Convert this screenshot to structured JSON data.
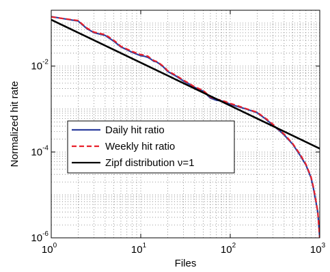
{
  "chart_data": {
    "type": "line",
    "xlabel": "Files",
    "ylabel": "Normalized hit rate",
    "xscale": "log",
    "yscale": "log",
    "xlim": [
      1,
      1000
    ],
    "ylim": [
      1e-06,
      0.2
    ],
    "x_ticks": [
      {
        "base": "10",
        "exp": "0",
        "value": 1
      },
      {
        "base": "10",
        "exp": "1",
        "value": 10
      },
      {
        "base": "10",
        "exp": "2",
        "value": 100
      },
      {
        "base": "10",
        "exp": "3",
        "value": 1000
      }
    ],
    "y_ticks": [
      {
        "base": "10",
        "exp": "-6",
        "value": 1e-06
      },
      {
        "base": "10",
        "exp": "-4",
        "value": 0.0001
      },
      {
        "base": "10",
        "exp": "-2",
        "value": 0.01
      }
    ],
    "grid": true,
    "legend_position": "lower-left",
    "series": [
      {
        "name": "Daily hit ratio",
        "color": "#2c3e9e",
        "style": "solid",
        "x": [
          1,
          1.3,
          2,
          2.5,
          3,
          4,
          5,
          6,
          7,
          8,
          9,
          10,
          11,
          12,
          13,
          14,
          15,
          16,
          18,
          20,
          25,
          30,
          35,
          40,
          50,
          60,
          70,
          80,
          100,
          120,
          150,
          200,
          250,
          300,
          350,
          400,
          500,
          600,
          700,
          800,
          850,
          900,
          950,
          1000
        ],
        "y": [
          0.142,
          0.13,
          0.112,
          0.075,
          0.06,
          0.052,
          0.038,
          0.028,
          0.024,
          0.021,
          0.019,
          0.0175,
          0.017,
          0.016,
          0.0145,
          0.013,
          0.0125,
          0.0115,
          0.0095,
          0.0075,
          0.0058,
          0.0045,
          0.0038,
          0.0032,
          0.0026,
          0.0018,
          0.0016,
          0.00155,
          0.0013,
          0.00115,
          0.001,
          0.00082,
          0.00058,
          0.00042,
          0.00032,
          0.00025,
          0.00015,
          8.5e-05,
          5e-05,
          2.5e-05,
          1.4e-05,
          7.5e-06,
          4e-06,
          1e-06
        ]
      },
      {
        "name": "Weekly hit ratio",
        "color": "#e8202a",
        "style": "dashed",
        "x": [
          1,
          1.3,
          2,
          2.5,
          3,
          4,
          5,
          6,
          7,
          8,
          9,
          10,
          11,
          12,
          13,
          14,
          15,
          16,
          18,
          20,
          25,
          30,
          35,
          40,
          50,
          60,
          70,
          80,
          100,
          120,
          150,
          200,
          250,
          300,
          350,
          400,
          500,
          600,
          700,
          800,
          850,
          900,
          950,
          1000
        ],
        "y": [
          0.14,
          0.13,
          0.115,
          0.077,
          0.062,
          0.054,
          0.04,
          0.029,
          0.025,
          0.022,
          0.02,
          0.0185,
          0.018,
          0.017,
          0.015,
          0.0135,
          0.0128,
          0.0118,
          0.0098,
          0.0078,
          0.006,
          0.0047,
          0.0039,
          0.0033,
          0.0027,
          0.0019,
          0.0017,
          0.0016,
          0.00135,
          0.0012,
          0.00102,
          0.00084,
          0.0006,
          0.00044,
          0.00033,
          0.00026,
          0.000155,
          9e-05,
          5.2e-05,
          2.6e-05,
          1.5e-05,
          8e-06,
          4e-06,
          1e-06
        ]
      },
      {
        "name": "Zipf distribution ν=1",
        "color": "#000000",
        "style": "solid",
        "x": [
          1,
          1000
        ],
        "y": [
          0.12,
          0.00012
        ]
      }
    ]
  }
}
